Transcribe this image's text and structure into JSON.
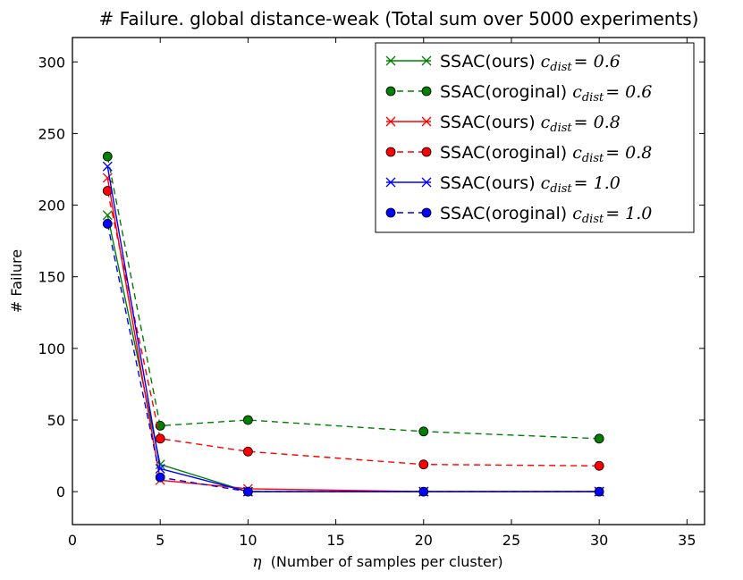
{
  "chart_data": {
    "type": "line",
    "title": "# Failure. global distance-weak (Total sum over 5000 experiments)",
    "xlabel_symbol": "η",
    "xlabel": "(Number of samples per cluster)",
    "ylabel": "# Failure",
    "xlim": [
      0,
      36
    ],
    "ylim": [
      -23,
      317
    ],
    "xticks": [
      0,
      5,
      10,
      15,
      20,
      25,
      30,
      35
    ],
    "yticks": [
      0,
      50,
      100,
      150,
      200,
      250,
      300
    ],
    "legend_position": "top-right",
    "x": [
      2,
      5,
      10,
      20,
      30
    ],
    "series": [
      {
        "name": "SSAC(ours)",
        "param": "c",
        "param_sub": "dist",
        "param_value": "= 0.6",
        "color": "#008000",
        "marker": "x",
        "dash": "solid",
        "values": [
          193,
          19,
          0,
          0,
          0
        ]
      },
      {
        "name": "SSAC(oroginal)",
        "param": "c",
        "param_sub": "dist",
        "param_value": "= 0.6",
        "color": "#008000",
        "marker": "o",
        "dash": "dashed",
        "values": [
          234,
          46,
          50,
          42,
          37
        ]
      },
      {
        "name": "SSAC(ours)",
        "param": "c",
        "param_sub": "dist",
        "param_value": "= 0.8",
        "color": "#ff0000",
        "marker": "x",
        "dash": "solid",
        "values": [
          219,
          8,
          2,
          0,
          0
        ]
      },
      {
        "name": "SSAC(oroginal)",
        "param": "c",
        "param_sub": "dist",
        "param_value": "= 0.8",
        "color": "#ff0000",
        "marker": "o",
        "dash": "dashed",
        "values": [
          210,
          37,
          28,
          19,
          18
        ]
      },
      {
        "name": "SSAC(ours)",
        "param": "c",
        "param_sub": "dist",
        "param_value": "= 1.0",
        "color": "#0000ff",
        "marker": "x",
        "dash": "solid",
        "values": [
          227,
          16,
          0,
          0,
          0
        ]
      },
      {
        "name": "SSAC(oroginal)",
        "param": "c",
        "param_sub": "dist",
        "param_value": "= 1.0",
        "color": "#0000ff",
        "marker": "o",
        "dash": "dashed",
        "values": [
          187,
          10,
          0,
          0,
          0
        ]
      }
    ]
  }
}
